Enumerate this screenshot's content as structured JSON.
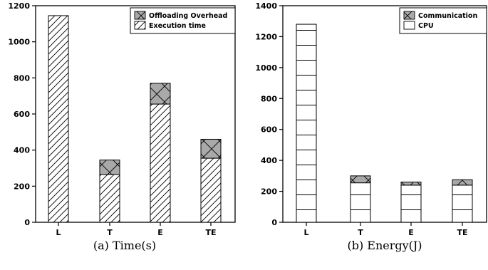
{
  "chart_data": [
    {
      "type": "bar",
      "stacked": true,
      "caption": "(a) Time(s)",
      "title": "",
      "xlabel": "",
      "ylabel": "",
      "categories": [
        "L",
        "T",
        "E",
        "TE"
      ],
      "ylim": [
        0,
        1200
      ],
      "yticks": [
        0,
        200,
        400,
        600,
        800,
        1000,
        1200
      ],
      "legend_position": "top-right",
      "series": [
        {
          "name": "Execution time",
          "pattern": "diagonal-hatch",
          "values": [
            1145,
            265,
            655,
            355
          ]
        },
        {
          "name": "Offloading Overhead",
          "pattern": "gray-crosshatch",
          "values": [
            0,
            80,
            115,
            105
          ]
        }
      ]
    },
    {
      "type": "bar",
      "stacked": true,
      "caption": "(b) Energy(J)",
      "title": "",
      "xlabel": "",
      "ylabel": "",
      "categories": [
        "L",
        "T",
        "E",
        "TE"
      ],
      "ylim": [
        0,
        1400
      ],
      "yticks": [
        0,
        200,
        400,
        600,
        800,
        1000,
        1200,
        1400
      ],
      "legend_position": "top-right",
      "series": [
        {
          "name": "CPU",
          "pattern": "horizontal-lines",
          "values": [
            1280,
            255,
            240,
            240
          ]
        },
        {
          "name": "Communication",
          "pattern": "gray-crosshatch",
          "values": [
            0,
            45,
            20,
            35
          ]
        }
      ]
    }
  ]
}
